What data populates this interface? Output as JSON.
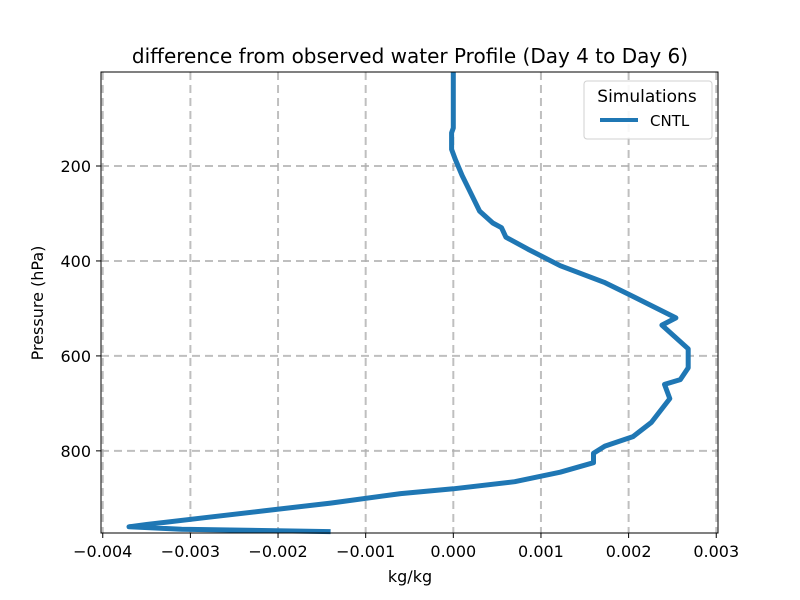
{
  "chart_data": {
    "type": "line",
    "title": "difference from observed water Profile (Day 4 to Day 6)",
    "xlabel": "kg/kg",
    "ylabel": "Pressure (hPa)",
    "xlim": [
      -0.00402,
      0.00302
    ],
    "ylim": [
      973,
      2
    ],
    "grid": true,
    "x_ticks": [
      -0.004,
      -0.003,
      -0.002,
      -0.001,
      0.0,
      0.001,
      0.002,
      0.003
    ],
    "x_tick_labels": [
      "−0.004",
      "−0.003",
      "−0.002",
      "−0.001",
      "0.000",
      "0.001",
      "0.002",
      "0.003"
    ],
    "y_ticks": [
      200,
      400,
      600,
      800
    ],
    "y_tick_labels": [
      "200",
      "400",
      "600",
      "800"
    ],
    "legend": {
      "title": "Simulations",
      "placement": "top-right",
      "entries": [
        {
          "label": "CNTL",
          "color": "#1f77b4"
        }
      ]
    },
    "series": [
      {
        "name": "CNTL",
        "color": "#1f77b4",
        "x": [
          0.0,
          0.0,
          -2e-05,
          -2e-05,
          2e-05,
          0.0001,
          0.00018,
          0.0003,
          0.00045,
          0.00055,
          0.0006,
          0.00085,
          0.00122,
          0.00172,
          0.002,
          0.00254,
          0.00238,
          0.00268,
          0.00268,
          0.00259,
          0.00241,
          0.00247,
          0.00226,
          0.00205,
          0.00173,
          0.0016,
          0.0016,
          0.00122,
          0.0007,
          0.0,
          -0.0006,
          -0.0014,
          -0.0028,
          -0.0035,
          -0.0037,
          -0.0031,
          -0.0014
        ],
        "y": [
          2,
          120,
          130,
          165,
          185,
          220,
          250,
          295,
          320,
          330,
          350,
          375,
          410,
          445,
          470,
          520,
          535,
          585,
          625,
          650,
          660,
          690,
          740,
          770,
          790,
          805,
          825,
          845,
          865,
          880,
          890,
          910,
          940,
          955,
          960,
          965,
          970
        ]
      }
    ]
  }
}
